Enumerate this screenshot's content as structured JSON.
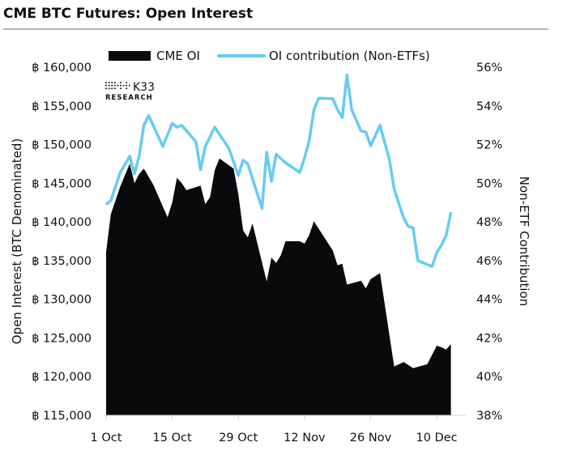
{
  "header": {
    "title": "CME BTC Futures: Open Interest"
  },
  "logo": {
    "text_top": "K33",
    "text_bottom": "RESEARCH"
  },
  "chart_data": {
    "type": "area+line",
    "title": "CME BTC Futures: Open Interest",
    "xlabel": "",
    "ylabel": "Open Interest (BTC Denominated)",
    "y2label": "Non-ETF Contribution",
    "x_ticks": [
      "1 Oct",
      "15 Oct",
      "29 Oct",
      "12 Nov",
      "26 Nov",
      "10 Dec"
    ],
    "x_tick_dates": [
      "2024-10-01",
      "2024-10-15",
      "2024-10-29",
      "2024-11-12",
      "2024-11-26",
      "2024-12-10"
    ],
    "xlim": [
      "2024-10-01",
      "2024-12-14"
    ],
    "y_ticks": [
      "฿ 160,000",
      "฿ 155,000",
      "฿ 150,000",
      "฿ 145,000",
      "฿ 140,000",
      "฿ 135,000",
      "฿ 130,000",
      "฿ 125,000",
      "฿ 120,000",
      "฿ 115,000"
    ],
    "ylim": [
      115000,
      160000
    ],
    "y2_ticks": [
      "56%",
      "54%",
      "52%",
      "50%",
      "48%",
      "46%",
      "44%",
      "42%",
      "40%",
      "38%"
    ],
    "y2lim": [
      38,
      56
    ],
    "grid": false,
    "legend_position": "top",
    "colors": {
      "cme_oi": "#0a0a0c",
      "non_etf": "#66ccf2",
      "rule": "#8fa4bc"
    },
    "series": [
      {
        "name": "CME OI",
        "type": "area",
        "axis": "left",
        "points": [
          [
            "2024-10-01",
            136100
          ],
          [
            "2024-10-02",
            141000
          ],
          [
            "2024-10-04",
            144600
          ],
          [
            "2024-10-06",
            147550
          ],
          [
            "2024-10-07",
            145000
          ],
          [
            "2024-10-08",
            146200
          ],
          [
            "2024-10-09",
            146900
          ],
          [
            "2024-10-11",
            144800
          ],
          [
            "2024-10-14",
            140600
          ],
          [
            "2024-10-15",
            142500
          ],
          [
            "2024-10-16",
            145700
          ],
          [
            "2024-10-17",
            145000
          ],
          [
            "2024-10-18",
            144100
          ],
          [
            "2024-10-21",
            144700
          ],
          [
            "2024-10-22",
            142300
          ],
          [
            "2024-10-23",
            143200
          ],
          [
            "2024-10-24",
            146700
          ],
          [
            "2024-10-25",
            148200
          ],
          [
            "2024-10-28",
            146900
          ],
          [
            "2024-10-29",
            143600
          ],
          [
            "2024-10-30",
            138900
          ],
          [
            "2024-10-31",
            138000
          ],
          [
            "2024-11-01",
            139800
          ],
          [
            "2024-11-04",
            132300
          ],
          [
            "2024-11-05",
            135400
          ],
          [
            "2024-11-06",
            134700
          ],
          [
            "2024-11-07",
            135700
          ],
          [
            "2024-11-08",
            137500
          ],
          [
            "2024-11-11",
            137500
          ],
          [
            "2024-11-12",
            137200
          ],
          [
            "2024-11-13",
            138300
          ],
          [
            "2024-11-14",
            140100
          ],
          [
            "2024-11-18",
            136300
          ],
          [
            "2024-11-19",
            134400
          ],
          [
            "2024-11-20",
            134600
          ],
          [
            "2024-11-21",
            131900
          ],
          [
            "2024-11-24",
            132400
          ],
          [
            "2024-11-25",
            131400
          ],
          [
            "2024-11-26",
            132600
          ],
          [
            "2024-11-28",
            133400
          ],
          [
            "2024-12-01",
            121300
          ],
          [
            "2024-12-03",
            121900
          ],
          [
            "2024-12-05",
            121100
          ],
          [
            "2024-12-08",
            121600
          ],
          [
            "2024-12-10",
            124000
          ],
          [
            "2024-12-11",
            123800
          ],
          [
            "2024-12-12",
            123500
          ],
          [
            "2024-12-13",
            124200
          ]
        ]
      },
      {
        "name": "OI contribution (Non-ETFs)",
        "type": "line",
        "axis": "right",
        "points": [
          [
            "2024-10-01",
            48.9
          ],
          [
            "2024-10-02",
            49.1
          ],
          [
            "2024-10-03",
            49.85
          ],
          [
            "2024-10-04",
            50.56
          ],
          [
            "2024-10-06",
            51.4
          ],
          [
            "2024-10-07",
            50.5
          ],
          [
            "2024-10-08",
            51.4
          ],
          [
            "2024-10-09",
            53.0
          ],
          [
            "2024-10-10",
            53.5
          ],
          [
            "2024-10-13",
            51.9
          ],
          [
            "2024-10-15",
            53.1
          ],
          [
            "2024-10-16",
            52.9
          ],
          [
            "2024-10-17",
            53.0
          ],
          [
            "2024-10-20",
            52.15
          ],
          [
            "2024-10-21",
            50.7
          ],
          [
            "2024-10-22",
            51.9
          ],
          [
            "2024-10-24",
            52.9
          ],
          [
            "2024-10-27",
            51.8
          ],
          [
            "2024-10-29",
            50.4
          ],
          [
            "2024-10-30",
            51.2
          ],
          [
            "2024-10-31",
            51.0
          ],
          [
            "2024-11-03",
            48.7
          ],
          [
            "2024-11-04",
            51.6
          ],
          [
            "2024-11-05",
            50.1
          ],
          [
            "2024-11-06",
            51.5
          ],
          [
            "2024-11-08",
            51.06
          ],
          [
            "2024-11-11",
            50.56
          ],
          [
            "2024-11-12",
            51.3
          ],
          [
            "2024-11-13",
            52.2
          ],
          [
            "2024-11-14",
            53.8
          ],
          [
            "2024-11-15",
            54.4
          ],
          [
            "2024-11-18",
            54.37
          ],
          [
            "2024-11-19",
            53.8
          ],
          [
            "2024-11-20",
            53.4
          ],
          [
            "2024-11-21",
            55.6
          ],
          [
            "2024-11-22",
            53.8
          ],
          [
            "2024-11-24",
            52.7
          ],
          [
            "2024-11-25",
            52.65
          ],
          [
            "2024-11-26",
            51.94
          ],
          [
            "2024-11-28",
            53.0
          ],
          [
            "2024-11-30",
            51.2
          ],
          [
            "2024-12-01",
            49.7
          ],
          [
            "2024-12-03",
            48.2
          ],
          [
            "2024-12-04",
            47.76
          ],
          [
            "2024-12-05",
            47.7
          ],
          [
            "2024-12-06",
            46.0
          ],
          [
            "2024-12-09",
            45.7
          ],
          [
            "2024-12-10",
            46.4
          ],
          [
            "2024-12-11",
            46.8
          ],
          [
            "2024-12-12",
            47.3
          ],
          [
            "2024-12-13",
            48.5
          ]
        ]
      }
    ]
  }
}
